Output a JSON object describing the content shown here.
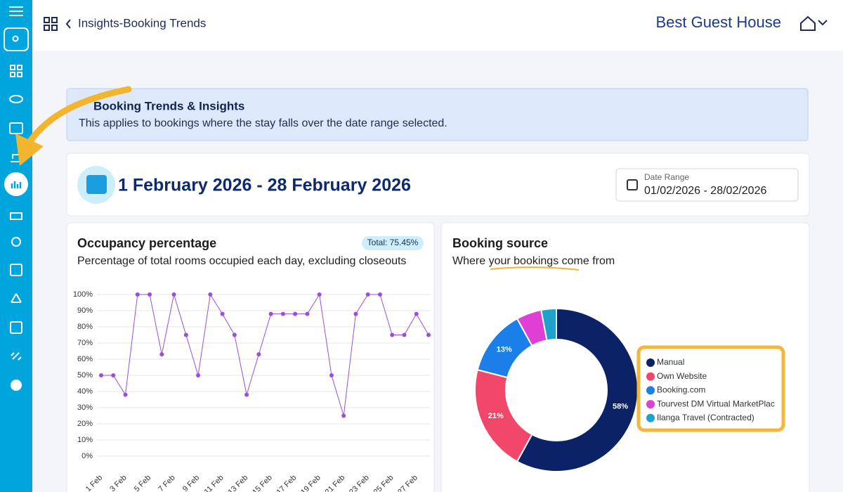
{
  "header": {
    "breadcrumb": "Insights-Booking Trends",
    "property": "Best Guest House"
  },
  "banner": {
    "title": "Booking Trends & Insights",
    "text": "This applies to bookings where the stay falls over the date range selected."
  },
  "date_card": {
    "title": "1 February 2026 - 28 February 2026",
    "label": "Date Range",
    "value": "01/02/2026 - 28/02/2026"
  },
  "chart_data": [
    {
      "type": "line",
      "title": "Occupancy percentage",
      "badge": "Total: 75.45%",
      "subtitle": "Percentage of total rooms occupied each day, excluding closeouts",
      "categories": [
        "1 Feb",
        null,
        "3 Feb",
        null,
        "5 Feb",
        null,
        "7 Feb",
        null,
        "9 Feb",
        null,
        "11 Feb",
        null,
        "13 Feb",
        null,
        "15 Feb",
        null,
        "17 Feb",
        null,
        "19 Feb",
        null,
        "21 Feb",
        null,
        "23 Feb",
        null,
        "25 Feb",
        null,
        "27 Feb",
        null
      ],
      "values": [
        50,
        50,
        38,
        100,
        100,
        63,
        100,
        75,
        50,
        100,
        88,
        75,
        38,
        63,
        88,
        88,
        88,
        88,
        100,
        50,
        25,
        88,
        100,
        100,
        75,
        75,
        88,
        75
      ],
      "color": "#9b4fd6",
      "ylim": [
        0,
        100
      ],
      "yticks": [
        {
          "value": 0,
          "label": "0%"
        },
        {
          "value": 10,
          "label": "10%"
        },
        {
          "value": 20,
          "label": "20%"
        },
        {
          "value": 30,
          "label": "30%"
        },
        {
          "value": 40,
          "label": "40%"
        },
        {
          "value": 50,
          "label": "50%"
        },
        {
          "value": 60,
          "label": "60%"
        },
        {
          "value": 70,
          "label": "70%"
        },
        {
          "value": 80,
          "label": "80%"
        },
        {
          "value": 90,
          "label": "90%"
        },
        {
          "value": 100,
          "label": "100%"
        }
      ],
      "grid": true
    },
    {
      "type": "donut",
      "title": "Booking source",
      "subtitle": "Where your bookings come from",
      "categories": [
        "Manual",
        "Own Website",
        "Booking.com",
        "Tourvest DM Virtual MarketPlac",
        "Ilanga Travel (Contracted)"
      ],
      "values": [
        58,
        21,
        13,
        5,
        3
      ],
      "value_labels": [
        "58%",
        "21%",
        "13%",
        null,
        null
      ],
      "colors": [
        "#0b2366",
        "#f0476a",
        "#1a7fe8",
        "#e03fd6",
        "#1fa2c9"
      ]
    }
  ]
}
